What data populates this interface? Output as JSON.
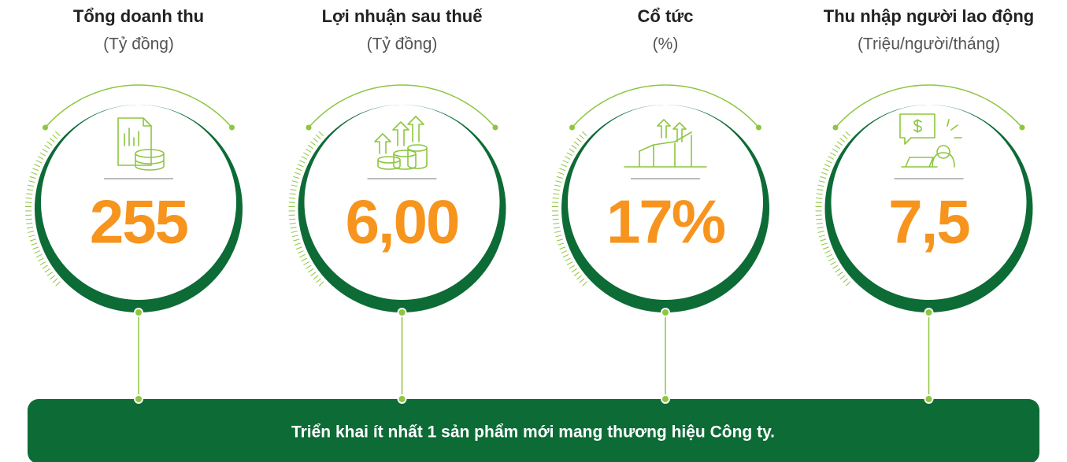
{
  "items": [
    {
      "title": "Tổng doanh thu",
      "unit": "(Tỷ đồng)",
      "value": "255"
    },
    {
      "title": "Lợi nhuận sau thuế",
      "unit": "(Tỷ đồng)",
      "value": "6,00"
    },
    {
      "title": "Cổ tức",
      "unit": "(%)",
      "value": "17%"
    },
    {
      "title": "Thu nhập người lao động",
      "unit": "(Triệu/người/tháng)",
      "value": "7,5"
    }
  ],
  "banner": "Triển khai ít nhất 1 sản phẩm mới mang thương hiệu Công ty."
}
